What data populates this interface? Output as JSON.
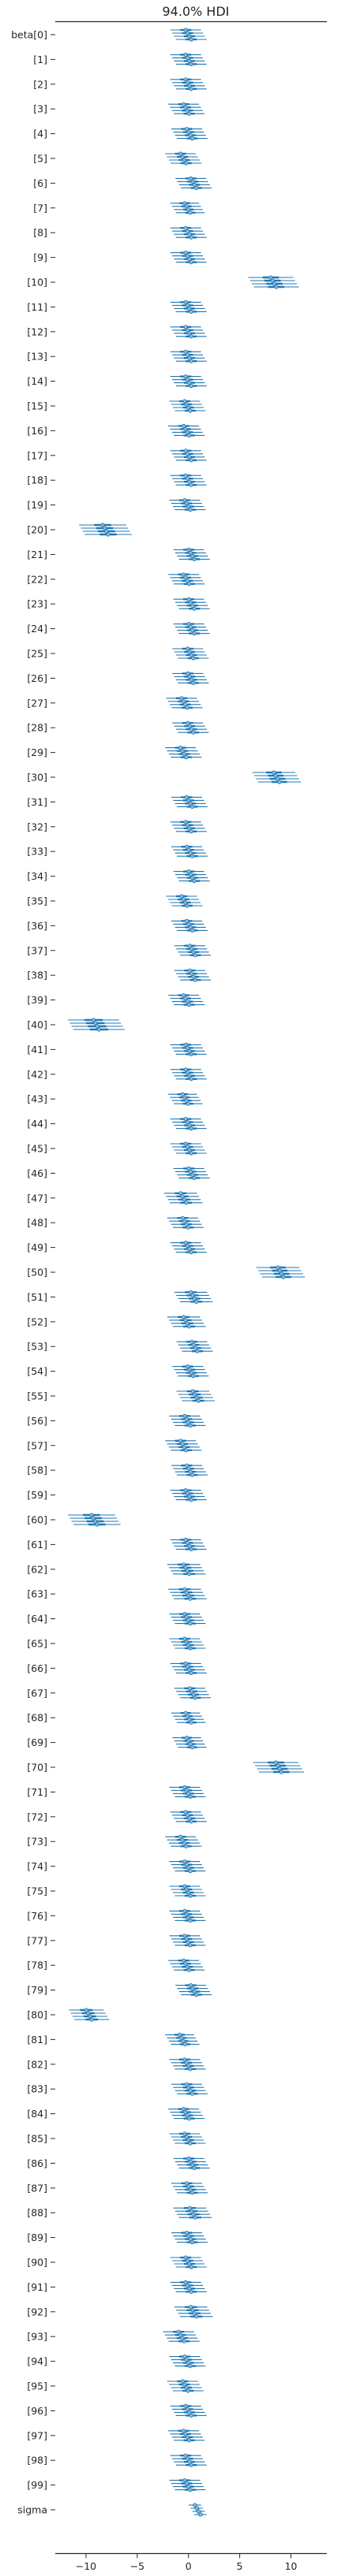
{
  "chart_data": {
    "type": "forest",
    "title": "94.0% HDI",
    "xlabel": "",
    "ylabel": "",
    "xlim": [
      -13,
      13.5
    ],
    "xticks": [
      -10,
      -5,
      0,
      5,
      10
    ],
    "xtick_labels": [
      "−10",
      "−5",
      "0",
      "5",
      "10"
    ],
    "grid": false,
    "legend": "none",
    "chains": 4,
    "colors": {
      "interval": "#1f77b4",
      "interval_light": "#8fbbd9",
      "axis": "#262626",
      "text": "#262626"
    },
    "labels": [
      "beta[0]",
      "[1]",
      "[2]",
      "[3]",
      "[4]",
      "[5]",
      "[6]",
      "[7]",
      "[8]",
      "[9]",
      "[10]",
      "[11]",
      "[12]",
      "[13]",
      "[14]",
      "[15]",
      "[16]",
      "[17]",
      "[18]",
      "[19]",
      "[20]",
      "[21]",
      "[22]",
      "[23]",
      "[24]",
      "[25]",
      "[26]",
      "[27]",
      "[28]",
      "[29]",
      "[30]",
      "[31]",
      "[32]",
      "[33]",
      "[34]",
      "[35]",
      "[36]",
      "[37]",
      "[38]",
      "[39]",
      "[40]",
      "[41]",
      "[42]",
      "[43]",
      "[44]",
      "[45]",
      "[46]",
      "[47]",
      "[48]",
      "[49]",
      "[50]",
      "[51]",
      "[52]",
      "[53]",
      "[54]",
      "[55]",
      "[56]",
      "[57]",
      "[58]",
      "[59]",
      "[60]",
      "[61]",
      "[62]",
      "[63]",
      "[64]",
      "[65]",
      "[66]",
      "[67]",
      "[68]",
      "[69]",
      "[70]",
      "[71]",
      "[72]",
      "[73]",
      "[74]",
      "[75]",
      "[76]",
      "[77]",
      "[78]",
      "[79]",
      "[80]",
      "[81]",
      "[82]",
      "[83]",
      "[84]",
      "[85]",
      "[86]",
      "[87]",
      "[88]",
      "[89]",
      "[90]",
      "[91]",
      "[92]",
      "[93]",
      "[94]",
      "[95]",
      "[96]",
      "[97]",
      "[98]",
      "[99]",
      "sigma"
    ],
    "means": [
      0.0,
      0.0,
      0.0,
      -0.2,
      0.1,
      -0.5,
      0.5,
      -0.1,
      0.0,
      0.0,
      8.3,
      0.0,
      0.0,
      0.0,
      0.0,
      -0.1,
      -0.2,
      0.0,
      0.0,
      -0.1,
      -8.1,
      0.3,
      -0.2,
      0.3,
      0.3,
      0.2,
      0.2,
      -0.4,
      0.2,
      -0.5,
      8.6,
      0.1,
      0.0,
      0.1,
      0.3,
      -0.4,
      0.1,
      0.4,
      0.4,
      -0.2,
      -9.0,
      0.0,
      0.0,
      -0.3,
      0.0,
      0.0,
      0.3,
      -0.5,
      -0.3,
      0.0,
      9.0,
      0.5,
      -0.2,
      0.6,
      0.2,
      0.7,
      -0.1,
      -0.5,
      0.1,
      0.0,
      -9.2,
      0.0,
      -0.2,
      -0.1,
      -0.1,
      -0.1,
      0.0,
      0.4,
      0.0,
      0.1,
      8.8,
      -0.1,
      0.0,
      -0.5,
      -0.1,
      -0.1,
      -0.1,
      -0.1,
      -0.2,
      0.5,
      -9.7,
      -0.6,
      -0.1,
      0.1,
      -0.2,
      -0.1,
      0.3,
      0.1,
      0.4,
      0.1,
      0.0,
      0.0,
      0.5,
      -0.7,
      -0.1,
      -0.3,
      0.0,
      -0.2,
      0.0,
      -0.1,
      0.9
    ],
    "hdi_half_width": [
      1.5,
      1.5,
      1.5,
      1.5,
      1.5,
      1.5,
      1.5,
      1.4,
      1.5,
      1.5,
      2.2,
      1.5,
      1.5,
      1.5,
      1.5,
      1.5,
      1.5,
      1.5,
      1.5,
      1.5,
      2.3,
      1.5,
      1.5,
      1.5,
      1.5,
      1.5,
      1.5,
      1.5,
      1.5,
      1.5,
      2.1,
      1.5,
      1.5,
      1.5,
      1.5,
      1.5,
      1.5,
      1.5,
      1.5,
      1.5,
      2.5,
      1.5,
      1.5,
      1.4,
      1.5,
      1.5,
      1.5,
      1.6,
      1.5,
      1.5,
      2.1,
      1.6,
      1.6,
      1.5,
      1.5,
      1.6,
      1.5,
      1.5,
      1.5,
      1.5,
      2.3,
      1.5,
      1.6,
      1.6,
      1.5,
      1.5,
      1.5,
      1.5,
      1.4,
      1.4,
      2.2,
      1.5,
      1.5,
      1.5,
      1.5,
      1.5,
      1.5,
      1.5,
      1.5,
      1.5,
      1.7,
      1.4,
      1.5,
      1.5,
      1.5,
      1.5,
      1.5,
      1.5,
      1.6,
      1.5,
      1.5,
      1.5,
      1.6,
      1.5,
      1.5,
      1.5,
      1.5,
      1.5,
      1.5,
      1.5,
      0.6
    ]
  }
}
